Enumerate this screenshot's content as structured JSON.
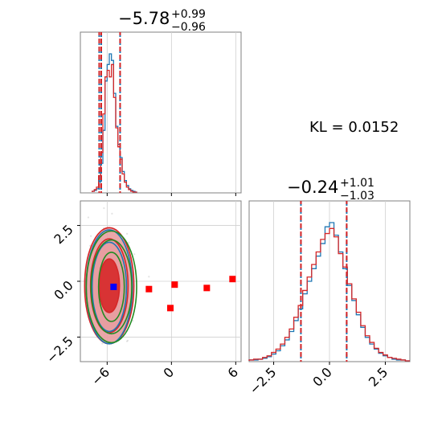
{
  "chart_data": [
    {
      "type": "histogram",
      "panel": "marginal-param-1",
      "title": {
        "main": "−5.78",
        "sup": "+0.99",
        "sub": "−0.96"
      },
      "xlim": [
        -8.5,
        6.5
      ],
      "quantile_lines": [
        -6.74,
        -6.55,
        -4.79
      ],
      "grid": true,
      "series": [
        {
          "name": "",
          "color": "#1f77b4",
          "x": [
            -7.4,
            -7.2,
            -7.0,
            -6.8,
            -6.6,
            -6.4,
            -6.2,
            -6.0,
            -5.8,
            -5.6,
            -5.4,
            -5.2,
            -5.0,
            -4.8,
            -4.6,
            -4.4,
            -4.2,
            -4.0,
            -3.8,
            -3.6,
            -3.4
          ],
          "values": [
            1,
            2,
            4,
            12,
            35,
            75,
            135,
            155,
            168,
            160,
            120,
            80,
            58,
            42,
            25,
            14,
            8,
            4,
            2,
            1,
            0
          ]
        },
        {
          "name": "",
          "color": "#d62728",
          "x": [
            -7.4,
            -7.2,
            -7.0,
            -6.8,
            -6.6,
            -6.4,
            -6.2,
            -6.0,
            -5.8,
            -5.6,
            -5.4,
            -5.2,
            -5.0,
            -4.8,
            -4.6,
            -4.4,
            -4.2,
            -4.0,
            -3.8,
            -3.6,
            -3.4
          ],
          "values": [
            1,
            3,
            6,
            20,
            48,
            95,
            140,
            148,
            140,
            155,
            115,
            78,
            55,
            40,
            22,
            12,
            6,
            3,
            1,
            0,
            0
          ]
        }
      ]
    },
    {
      "type": "histogram",
      "panel": "marginal-param-2",
      "title": {
        "main": "−0.24",
        "sup": "+1.01",
        "sub": "−1.03"
      },
      "xlim": [
        -3.6,
        3.6
      ],
      "xticks": [
        -2.5,
        0.0,
        2.5
      ],
      "xtick_labels": [
        "−2.5",
        "0.0",
        "2.5"
      ],
      "quantile_lines": [
        -1.28,
        0.77
      ],
      "grid": true,
      "series": [
        {
          "name": "",
          "color": "#1f77b4",
          "x": [
            -3.6,
            -3.4,
            -3.2,
            -3.0,
            -2.8,
            -2.6,
            -2.4,
            -2.2,
            -2.0,
            -1.8,
            -1.6,
            -1.4,
            -1.2,
            -1.0,
            -0.8,
            -0.6,
            -0.4,
            -0.2,
            0.0,
            0.2,
            0.4,
            0.6,
            0.8,
            1.0,
            1.2,
            1.4,
            1.6,
            1.8,
            2.0,
            2.2,
            2.4,
            2.6,
            2.8,
            3.0,
            3.2,
            3.4
          ],
          "values": [
            1,
            1,
            2,
            3,
            5,
            8,
            12,
            18,
            25,
            35,
            48,
            62,
            80,
            95,
            110,
            125,
            140,
            160,
            165,
            150,
            130,
            110,
            90,
            72,
            55,
            40,
            28,
            20,
            14,
            9,
            6,
            4,
            2,
            1,
            1,
            0
          ]
        },
        {
          "name": "",
          "color": "#d62728",
          "x": [
            -3.6,
            -3.4,
            -3.2,
            -3.0,
            -2.8,
            -2.6,
            -2.4,
            -2.2,
            -2.0,
            -1.8,
            -1.6,
            -1.4,
            -1.2,
            -1.0,
            -0.8,
            -0.6,
            -0.4,
            -0.2,
            0.0,
            0.2,
            0.4,
            0.6,
            0.8,
            1.0,
            1.2,
            1.4,
            1.6,
            1.8,
            2.0,
            2.2,
            2.4,
            2.6,
            2.8,
            3.0,
            3.2,
            3.4
          ],
          "values": [
            1,
            2,
            2,
            4,
            6,
            10,
            14,
            20,
            28,
            38,
            52,
            66,
            84,
            100,
            115,
            130,
            145,
            152,
            158,
            148,
            128,
            112,
            92,
            74,
            58,
            42,
            30,
            22,
            15,
            10,
            7,
            4,
            3,
            2,
            1,
            0
          ]
        }
      ]
    },
    {
      "type": "scatter",
      "panel": "joint-param-1-param-2",
      "xlim": [
        -8.5,
        6.5
      ],
      "ylim": [
        -3.6,
        3.6
      ],
      "xticks": [
        -6,
        0,
        6
      ],
      "xtick_labels": [
        "−6",
        "0",
        "6"
      ],
      "yticks": [
        -2.5,
        0.0,
        2.5
      ],
      "ytick_labels": [
        "−2.5",
        "0.0",
        "2.5"
      ],
      "grid": true,
      "contours": [
        {
          "name": "",
          "color": "#d62728",
          "fill": "#e89da0",
          "cx": -5.8,
          "cy": -0.2,
          "levels": [
            {
              "rx": 2.3,
              "ry": 2.6
            },
            {
              "rx": 1.75,
              "ry": 2.1
            },
            {
              "rx": 0.95,
              "ry": 1.2
            }
          ]
        },
        {
          "name": "",
          "color": "#1f77b4",
          "fill": "none",
          "cx": -5.8,
          "cy": -0.25,
          "levels": [
            {
              "rx": 2.15,
              "ry": 2.55
            },
            {
              "rx": 1.6,
              "ry": 2.0
            }
          ]
        },
        {
          "name": "",
          "color": "#228b22",
          "fill": "none",
          "cx": -5.6,
          "cy": -0.25,
          "levels": [
            {
              "rx": 2.35,
              "ry": 2.5
            },
            {
              "rx": 1.9,
              "ry": 2.1
            },
            {
              "rx": 1.2,
              "ry": 1.55
            }
          ]
        }
      ],
      "points": [
        {
          "name": "",
          "color": "#0000ff",
          "x": [
            -5.4
          ],
          "y": [
            -0.25
          ]
        },
        {
          "name": "",
          "color": "#ff0000",
          "x": [
            -2.1,
            0.3,
            -0.1,
            3.3,
            5.7
          ],
          "y": [
            -0.35,
            -0.15,
            -1.2,
            -0.3,
            0.1
          ]
        }
      ]
    }
  ],
  "annotation": {
    "kl_text": "KL = 0.0152"
  }
}
